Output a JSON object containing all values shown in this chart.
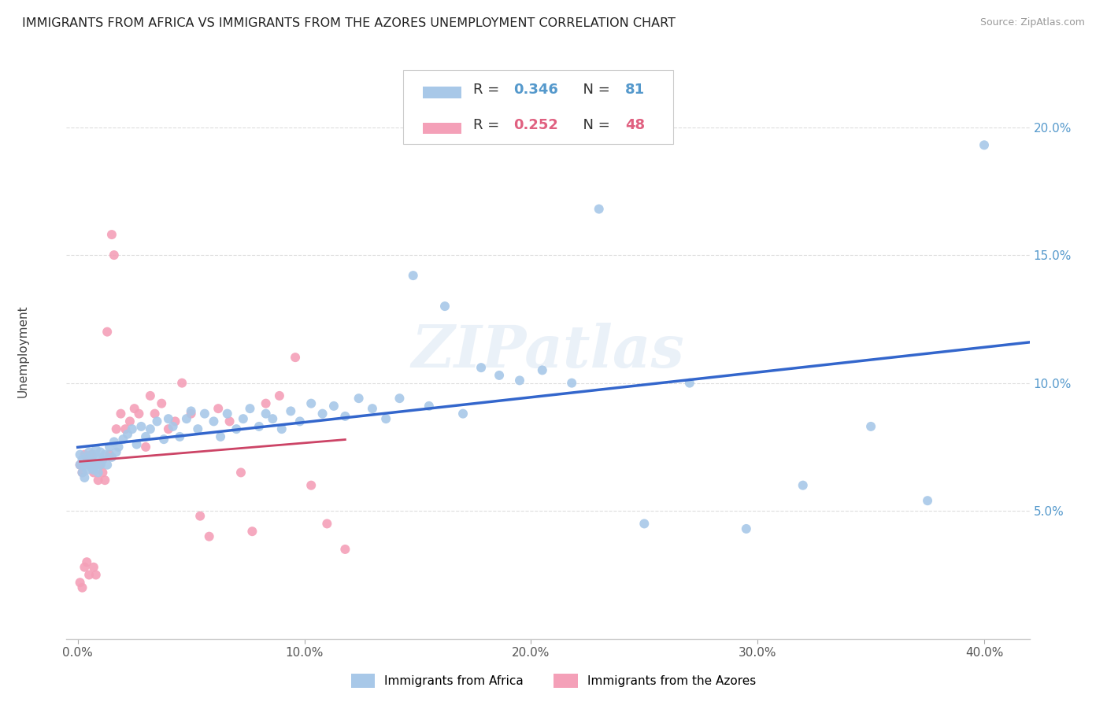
{
  "title": "IMMIGRANTS FROM AFRICA VS IMMIGRANTS FROM THE AZORES UNEMPLOYMENT CORRELATION CHART",
  "source": "Source: ZipAtlas.com",
  "xlabel_ticks": [
    "0.0%",
    "10.0%",
    "20.0%",
    "30.0%",
    "40.0%"
  ],
  "xlabel_vals": [
    0.0,
    0.1,
    0.2,
    0.3,
    0.4
  ],
  "ylabel_ticks": [
    "5.0%",
    "10.0%",
    "15.0%",
    "20.0%"
  ],
  "ylabel_vals": [
    0.05,
    0.1,
    0.15,
    0.2
  ],
  "xlim": [
    -0.005,
    0.42
  ],
  "ylim": [
    0.0,
    0.225
  ],
  "ylabel": "Unemployment",
  "legend_labels": [
    "Immigrants from Africa",
    "Immigrants from the Azores"
  ],
  "legend_R": [
    0.346,
    0.252
  ],
  "legend_N": [
    81,
    48
  ],
  "color_africa": "#a8c8e8",
  "color_azores": "#f4a0b8",
  "trendline_color_africa": "#3366cc",
  "trendline_color_azores": "#cc4466",
  "gray_dash_color": "#bbbbbb",
  "watermark": "ZIPatlas",
  "africa_x": [
    0.001,
    0.001,
    0.002,
    0.002,
    0.003,
    0.003,
    0.004,
    0.004,
    0.005,
    0.005,
    0.006,
    0.006,
    0.007,
    0.007,
    0.008,
    0.008,
    0.009,
    0.009,
    0.01,
    0.01,
    0.011,
    0.012,
    0.013,
    0.014,
    0.015,
    0.016,
    0.017,
    0.018,
    0.02,
    0.022,
    0.024,
    0.026,
    0.028,
    0.03,
    0.032,
    0.035,
    0.038,
    0.04,
    0.042,
    0.045,
    0.048,
    0.05,
    0.053,
    0.056,
    0.06,
    0.063,
    0.066,
    0.07,
    0.073,
    0.076,
    0.08,
    0.083,
    0.086,
    0.09,
    0.094,
    0.098,
    0.103,
    0.108,
    0.113,
    0.118,
    0.124,
    0.13,
    0.136,
    0.142,
    0.148,
    0.155,
    0.162,
    0.17,
    0.178,
    0.186,
    0.195,
    0.205,
    0.218,
    0.23,
    0.25,
    0.27,
    0.295,
    0.32,
    0.35,
    0.375,
    0.4
  ],
  "africa_y": [
    0.068,
    0.072,
    0.065,
    0.07,
    0.063,
    0.068,
    0.071,
    0.066,
    0.069,
    0.073,
    0.067,
    0.07,
    0.072,
    0.066,
    0.068,
    0.074,
    0.071,
    0.065,
    0.068,
    0.073,
    0.07,
    0.072,
    0.068,
    0.075,
    0.071,
    0.077,
    0.073,
    0.075,
    0.078,
    0.08,
    0.082,
    0.076,
    0.083,
    0.079,
    0.082,
    0.085,
    0.078,
    0.086,
    0.083,
    0.079,
    0.086,
    0.089,
    0.082,
    0.088,
    0.085,
    0.079,
    0.088,
    0.082,
    0.086,
    0.09,
    0.083,
    0.088,
    0.086,
    0.082,
    0.089,
    0.085,
    0.092,
    0.088,
    0.091,
    0.087,
    0.094,
    0.09,
    0.086,
    0.094,
    0.142,
    0.091,
    0.13,
    0.088,
    0.106,
    0.103,
    0.101,
    0.105,
    0.1,
    0.168,
    0.045,
    0.1,
    0.043,
    0.06,
    0.083,
    0.054,
    0.193
  ],
  "azores_x": [
    0.001,
    0.001,
    0.002,
    0.002,
    0.003,
    0.003,
    0.004,
    0.005,
    0.005,
    0.006,
    0.007,
    0.007,
    0.008,
    0.008,
    0.009,
    0.01,
    0.011,
    0.012,
    0.014,
    0.015,
    0.017,
    0.019,
    0.021,
    0.023,
    0.025,
    0.027,
    0.03,
    0.032,
    0.034,
    0.037,
    0.04,
    0.043,
    0.046,
    0.05,
    0.054,
    0.058,
    0.062,
    0.067,
    0.072,
    0.077,
    0.083,
    0.089,
    0.096,
    0.103,
    0.11,
    0.118,
    0.016,
    0.013
  ],
  "azores_y": [
    0.068,
    0.022,
    0.065,
    0.02,
    0.072,
    0.028,
    0.03,
    0.025,
    0.068,
    0.072,
    0.028,
    0.065,
    0.068,
    0.025,
    0.062,
    0.068,
    0.065,
    0.062,
    0.072,
    0.158,
    0.082,
    0.088,
    0.082,
    0.085,
    0.09,
    0.088,
    0.075,
    0.095,
    0.088,
    0.092,
    0.082,
    0.085,
    0.1,
    0.088,
    0.048,
    0.04,
    0.09,
    0.085,
    0.065,
    0.042,
    0.092,
    0.095,
    0.11,
    0.06,
    0.045,
    0.035,
    0.15,
    0.12
  ]
}
